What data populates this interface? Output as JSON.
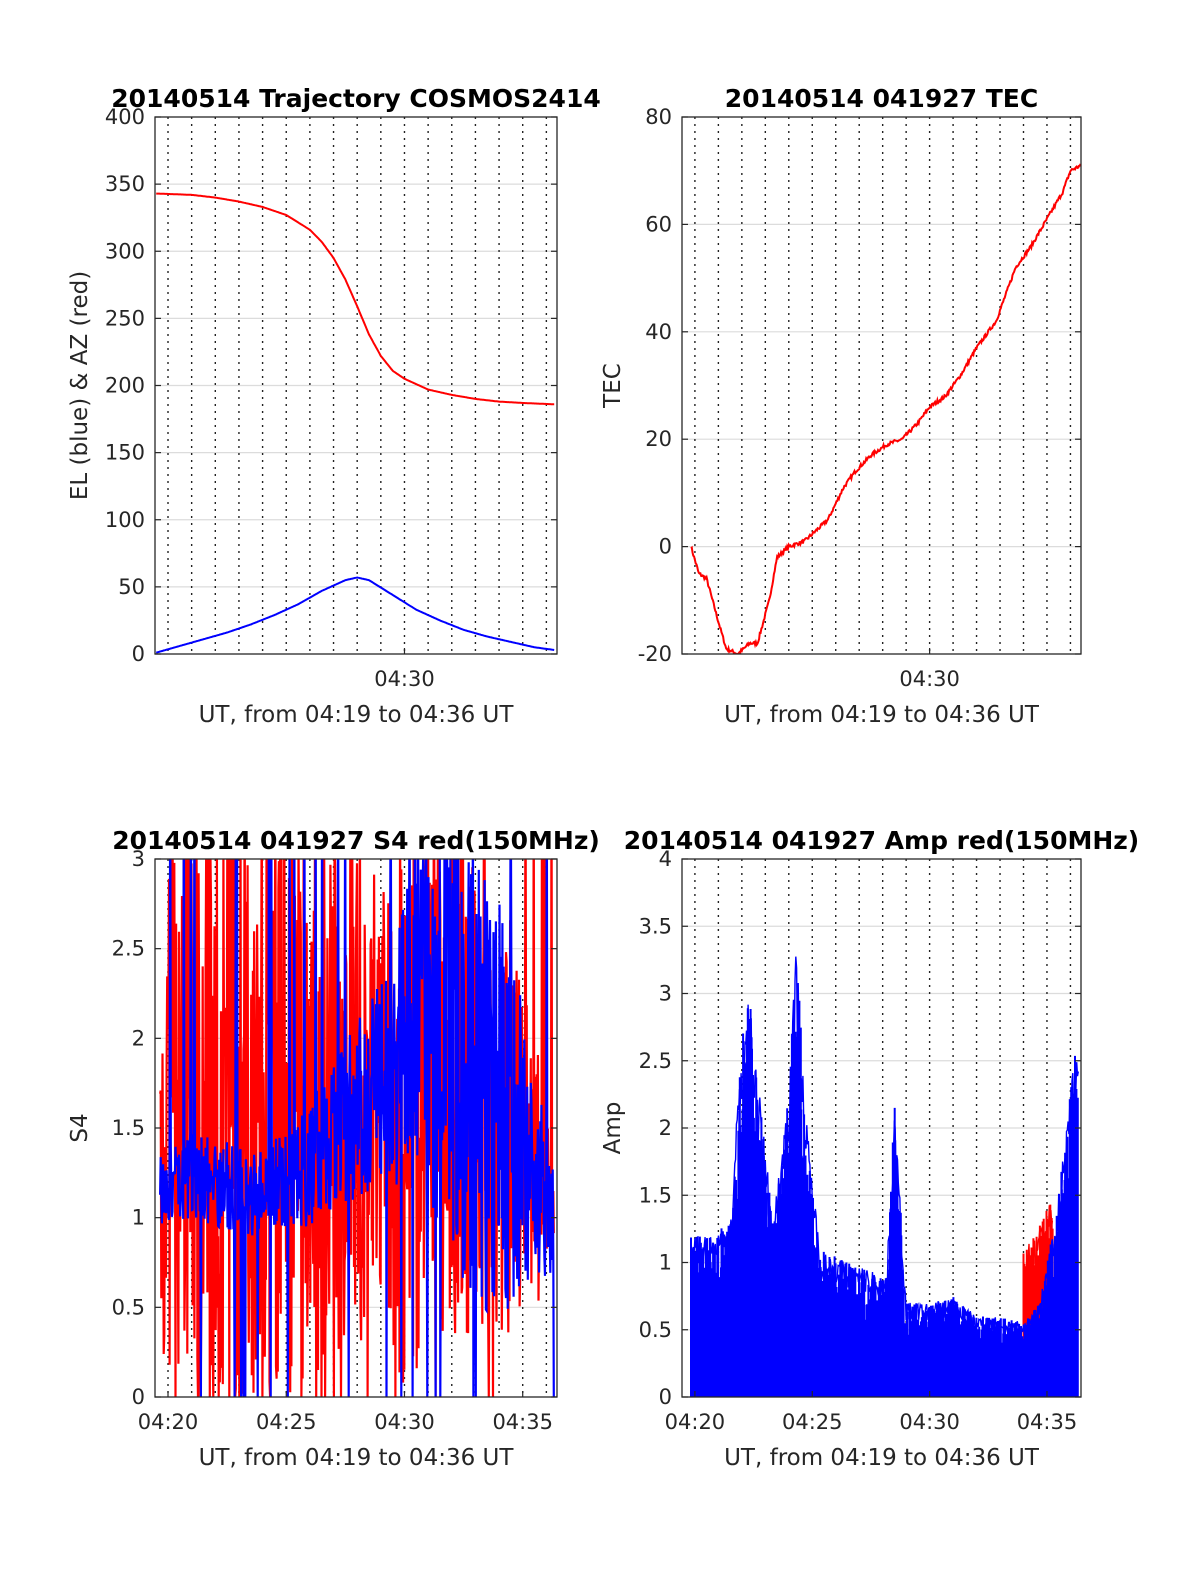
{
  "chart_data": [
    {
      "type": "line",
      "title": "20140514 Trajectory COSMOS2414",
      "xlabel": "UT, from 04:19 to 04:36 UT",
      "ylabel": "EL (blue) & AZ (red)",
      "xlim": [
        "04:19:27",
        "04:36:27"
      ],
      "ylim": [
        0,
        400
      ],
      "yticks": [
        "0",
        "50",
        "100",
        "150",
        "200",
        "250",
        "300",
        "350",
        "400"
      ],
      "xticks": [
        {
          "t": "04:30",
          "label": "04:30"
        }
      ],
      "grid": true,
      "series": [
        {
          "color": "#ff0000",
          "x": [
            "04:19:30",
            "04:21:00",
            "04:22:00",
            "04:23:00",
            "04:24:00",
            "04:25:00",
            "04:26:00",
            "04:26:30",
            "04:27:00",
            "04:27:30",
            "04:28:00",
            "04:28:30",
            "04:29:00",
            "04:29:30",
            "04:30:00",
            "04:31:00",
            "04:32:00",
            "04:33:00",
            "04:34:00",
            "04:35:00",
            "04:36:20"
          ],
          "y": [
            343,
            342,
            340,
            337,
            333,
            327,
            316,
            307,
            295,
            279,
            259,
            238,
            222,
            211,
            205,
            197,
            193,
            190,
            188,
            187,
            186
          ]
        },
        {
          "color": "#0000ff",
          "x": [
            "04:19:30",
            "04:20:30",
            "04:21:30",
            "04:22:30",
            "04:23:30",
            "04:24:30",
            "04:25:30",
            "04:26:30",
            "04:27:30",
            "04:28:00",
            "04:28:30",
            "04:29:30",
            "04:30:30",
            "04:31:30",
            "04:32:30",
            "04:33:30",
            "04:34:30",
            "04:35:30",
            "04:36:20"
          ],
          "y": [
            1,
            6,
            11,
            16,
            22,
            29,
            37,
            47,
            55,
            57,
            55,
            44,
            33,
            25,
            18,
            13,
            9,
            5,
            3
          ]
        }
      ]
    },
    {
      "type": "line",
      "title": "20140514 041927 TEC",
      "xlabel": "UT, from 04:19 to 04:36 UT",
      "ylabel": "TEC",
      "xlim": [
        "04:19:27",
        "04:36:27"
      ],
      "ylim": [
        -20,
        80
      ],
      "yticks": [
        "-20",
        "0",
        "20",
        "40",
        "60",
        "80"
      ],
      "xticks": [
        {
          "t": "04:30",
          "label": "04:30"
        }
      ],
      "grid": true,
      "series": [
        {
          "color": "#ff0000",
          "x": [
            "04:19:50",
            "04:20:10",
            "04:20:30",
            "04:21:00",
            "04:21:20",
            "04:21:50",
            "04:22:20",
            "04:22:40",
            "04:23:10",
            "04:23:30",
            "04:24:00",
            "04:24:40",
            "04:25:10",
            "04:25:40",
            "04:26:20",
            "04:26:50",
            "04:27:30",
            "04:28:10",
            "04:28:50",
            "04:29:30",
            "04:30:00",
            "04:30:40",
            "04:31:20",
            "04:32:00",
            "04:32:50",
            "04:33:40",
            "04:34:20",
            "04:35:00",
            "04:35:40",
            "04:36:00",
            "04:36:27"
          ],
          "y": [
            0,
            -5,
            -6,
            -14,
            -19,
            -20,
            -18,
            -18,
            -10,
            -2,
            0,
            1,
            3,
            5,
            11,
            14,
            17,
            19,
            20,
            23,
            26,
            28,
            32,
            37,
            42,
            52,
            56,
            61,
            66,
            70,
            71
          ]
        }
      ]
    },
    {
      "type": "line",
      "title": "20140514 041927 S4 red(150MHz)",
      "xlabel": "UT, from 04:19 to 04:36 UT",
      "ylabel": "S4",
      "xlim": [
        "04:19:27",
        "04:36:27"
      ],
      "ylim": [
        0,
        3
      ],
      "yticks": [
        "0",
        "0.5",
        "1",
        "1.5",
        "2",
        "2.5",
        "3"
      ],
      "xticks": [
        {
          "t": "04:20",
          "label": "04:20"
        },
        {
          "t": "04:25",
          "label": "04:25"
        },
        {
          "t": "04:30",
          "label": "04:30"
        },
        {
          "t": "04:35",
          "label": "04:35"
        }
      ],
      "grid": true,
      "series": [
        {
          "color": "#ff0000",
          "style": "noise",
          "x": [
            "04:19:40",
            "04:21:00",
            "04:22:00",
            "04:23:00",
            "04:24:00",
            "04:25:00",
            "04:26:00",
            "04:27:00",
            "04:28:00",
            "04:29:00",
            "04:30:00",
            "04:31:00",
            "04:32:00",
            "04:33:00",
            "04:34:00",
            "04:35:00",
            "04:36:20"
          ],
          "y": [
            1.5,
            1.6,
            1.6,
            1.5,
            1.5,
            1.6,
            1.6,
            1.7,
            1.7,
            1.6,
            1.5,
            1.6,
            1.7,
            1.7,
            1.6,
            1.4,
            1.0
          ],
          "spread": [
            1.4,
            1.6,
            1.6,
            1.6,
            1.6,
            1.6,
            1.5,
            1.5,
            1.4,
            1.4,
            1.5,
            1.5,
            1.4,
            1.4,
            1.3,
            1.0,
            0.4
          ]
        },
        {
          "color": "#0000ff",
          "style": "noise",
          "x": [
            "04:19:40",
            "04:21:00",
            "04:22:00",
            "04:23:00",
            "04:24:00",
            "04:25:00",
            "04:26:00",
            "04:27:00",
            "04:28:00",
            "04:29:00",
            "04:30:00",
            "04:31:00",
            "04:32:00",
            "04:33:00",
            "04:34:00",
            "04:35:00",
            "04:36:20"
          ],
          "y": [
            1.15,
            1.25,
            1.2,
            1.15,
            1.15,
            1.25,
            1.3,
            1.45,
            1.6,
            1.75,
            2.0,
            2.1,
            2.0,
            1.8,
            1.6,
            1.4,
            0.95
          ],
          "spread": [
            0.2,
            0.25,
            0.25,
            0.25,
            0.25,
            0.3,
            0.35,
            0.4,
            0.5,
            0.6,
            0.8,
            1.0,
            1.2,
            1.3,
            1.2,
            0.8,
            0.3
          ]
        }
      ]
    },
    {
      "type": "line",
      "title": "20140514 041927 Amp red(150MHz)",
      "xlabel": "UT, from 04:19 to 04:36 UT",
      "ylabel": "Amp",
      "xlim": [
        "04:19:27",
        "04:36:27"
      ],
      "ylim": [
        0,
        4
      ],
      "yticks": [
        "0",
        "0.5",
        "1",
        "1.5",
        "2",
        "2.5",
        "3",
        "3.5",
        "4"
      ],
      "xticks": [
        {
          "t": "04:20",
          "label": "04:20"
        },
        {
          "t": "04:25",
          "label": "04:25"
        },
        {
          "t": "04:30",
          "label": "04:30"
        },
        {
          "t": "04:35",
          "label": "04:35"
        }
      ],
      "grid": true,
      "series": [
        {
          "color": "#ff0000",
          "style": "fill",
          "x": [
            "04:34:00",
            "04:34:30",
            "04:35:00",
            "04:35:15"
          ],
          "y": [
            1.1,
            1.2,
            1.4,
            1.5
          ]
        },
        {
          "color": "#0000ff",
          "style": "fill",
          "x": [
            "04:19:50",
            "04:20:30",
            "04:21:30",
            "04:22:00",
            "04:22:20",
            "04:22:40",
            "04:23:20",
            "04:24:00",
            "04:24:20",
            "04:24:40",
            "04:25:20",
            "04:26:30",
            "04:27:30",
            "04:28:10",
            "04:28:30",
            "04:29:00",
            "04:30:00",
            "04:31:00",
            "04:32:00",
            "04:33:00",
            "04:34:00",
            "04:34:40",
            "04:35:20",
            "04:35:50",
            "04:36:20"
          ],
          "y": [
            1.2,
            1.2,
            1.3,
            2.7,
            3.0,
            2.4,
            1.3,
            2.4,
            3.4,
            2.2,
            1.1,
            1.0,
            0.95,
            0.9,
            2.2,
            0.7,
            0.7,
            0.75,
            0.6,
            0.6,
            0.55,
            0.7,
            1.3,
            2.0,
            2.8
          ]
        }
      ]
    }
  ]
}
